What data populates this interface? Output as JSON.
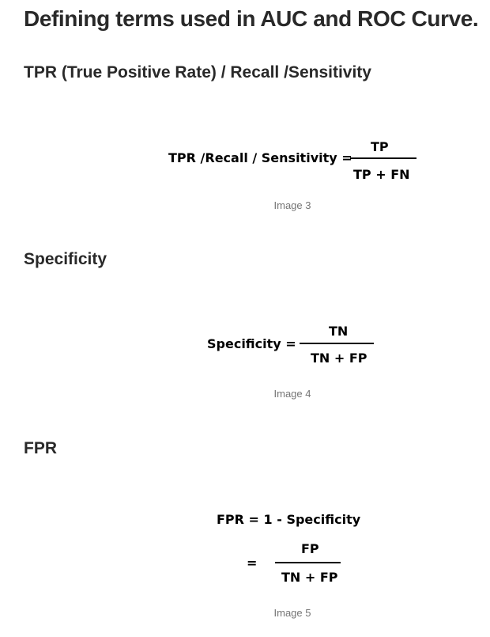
{
  "title": "Defining terms used in AUC and ROC Curve.",
  "sections": [
    {
      "heading": "TPR (True Positive Rate) / Recall /Sensitivity",
      "formula": {
        "lhs": "TPR /Recall / Sensitivity =",
        "numerator": "TP",
        "denominator": "TP + FN"
      },
      "caption": "Image 3"
    },
    {
      "heading": "Specificity",
      "formula": {
        "lhs": "Specificity =",
        "numerator": "TN",
        "denominator": "TN + FP"
      },
      "caption": "Image 4"
    },
    {
      "heading": "FPR",
      "formula": {
        "line1": "FPR = 1 - Specificity",
        "lhs": "=",
        "numerator": "FP",
        "denominator": "TN + FP"
      },
      "caption": "Image 5"
    }
  ]
}
